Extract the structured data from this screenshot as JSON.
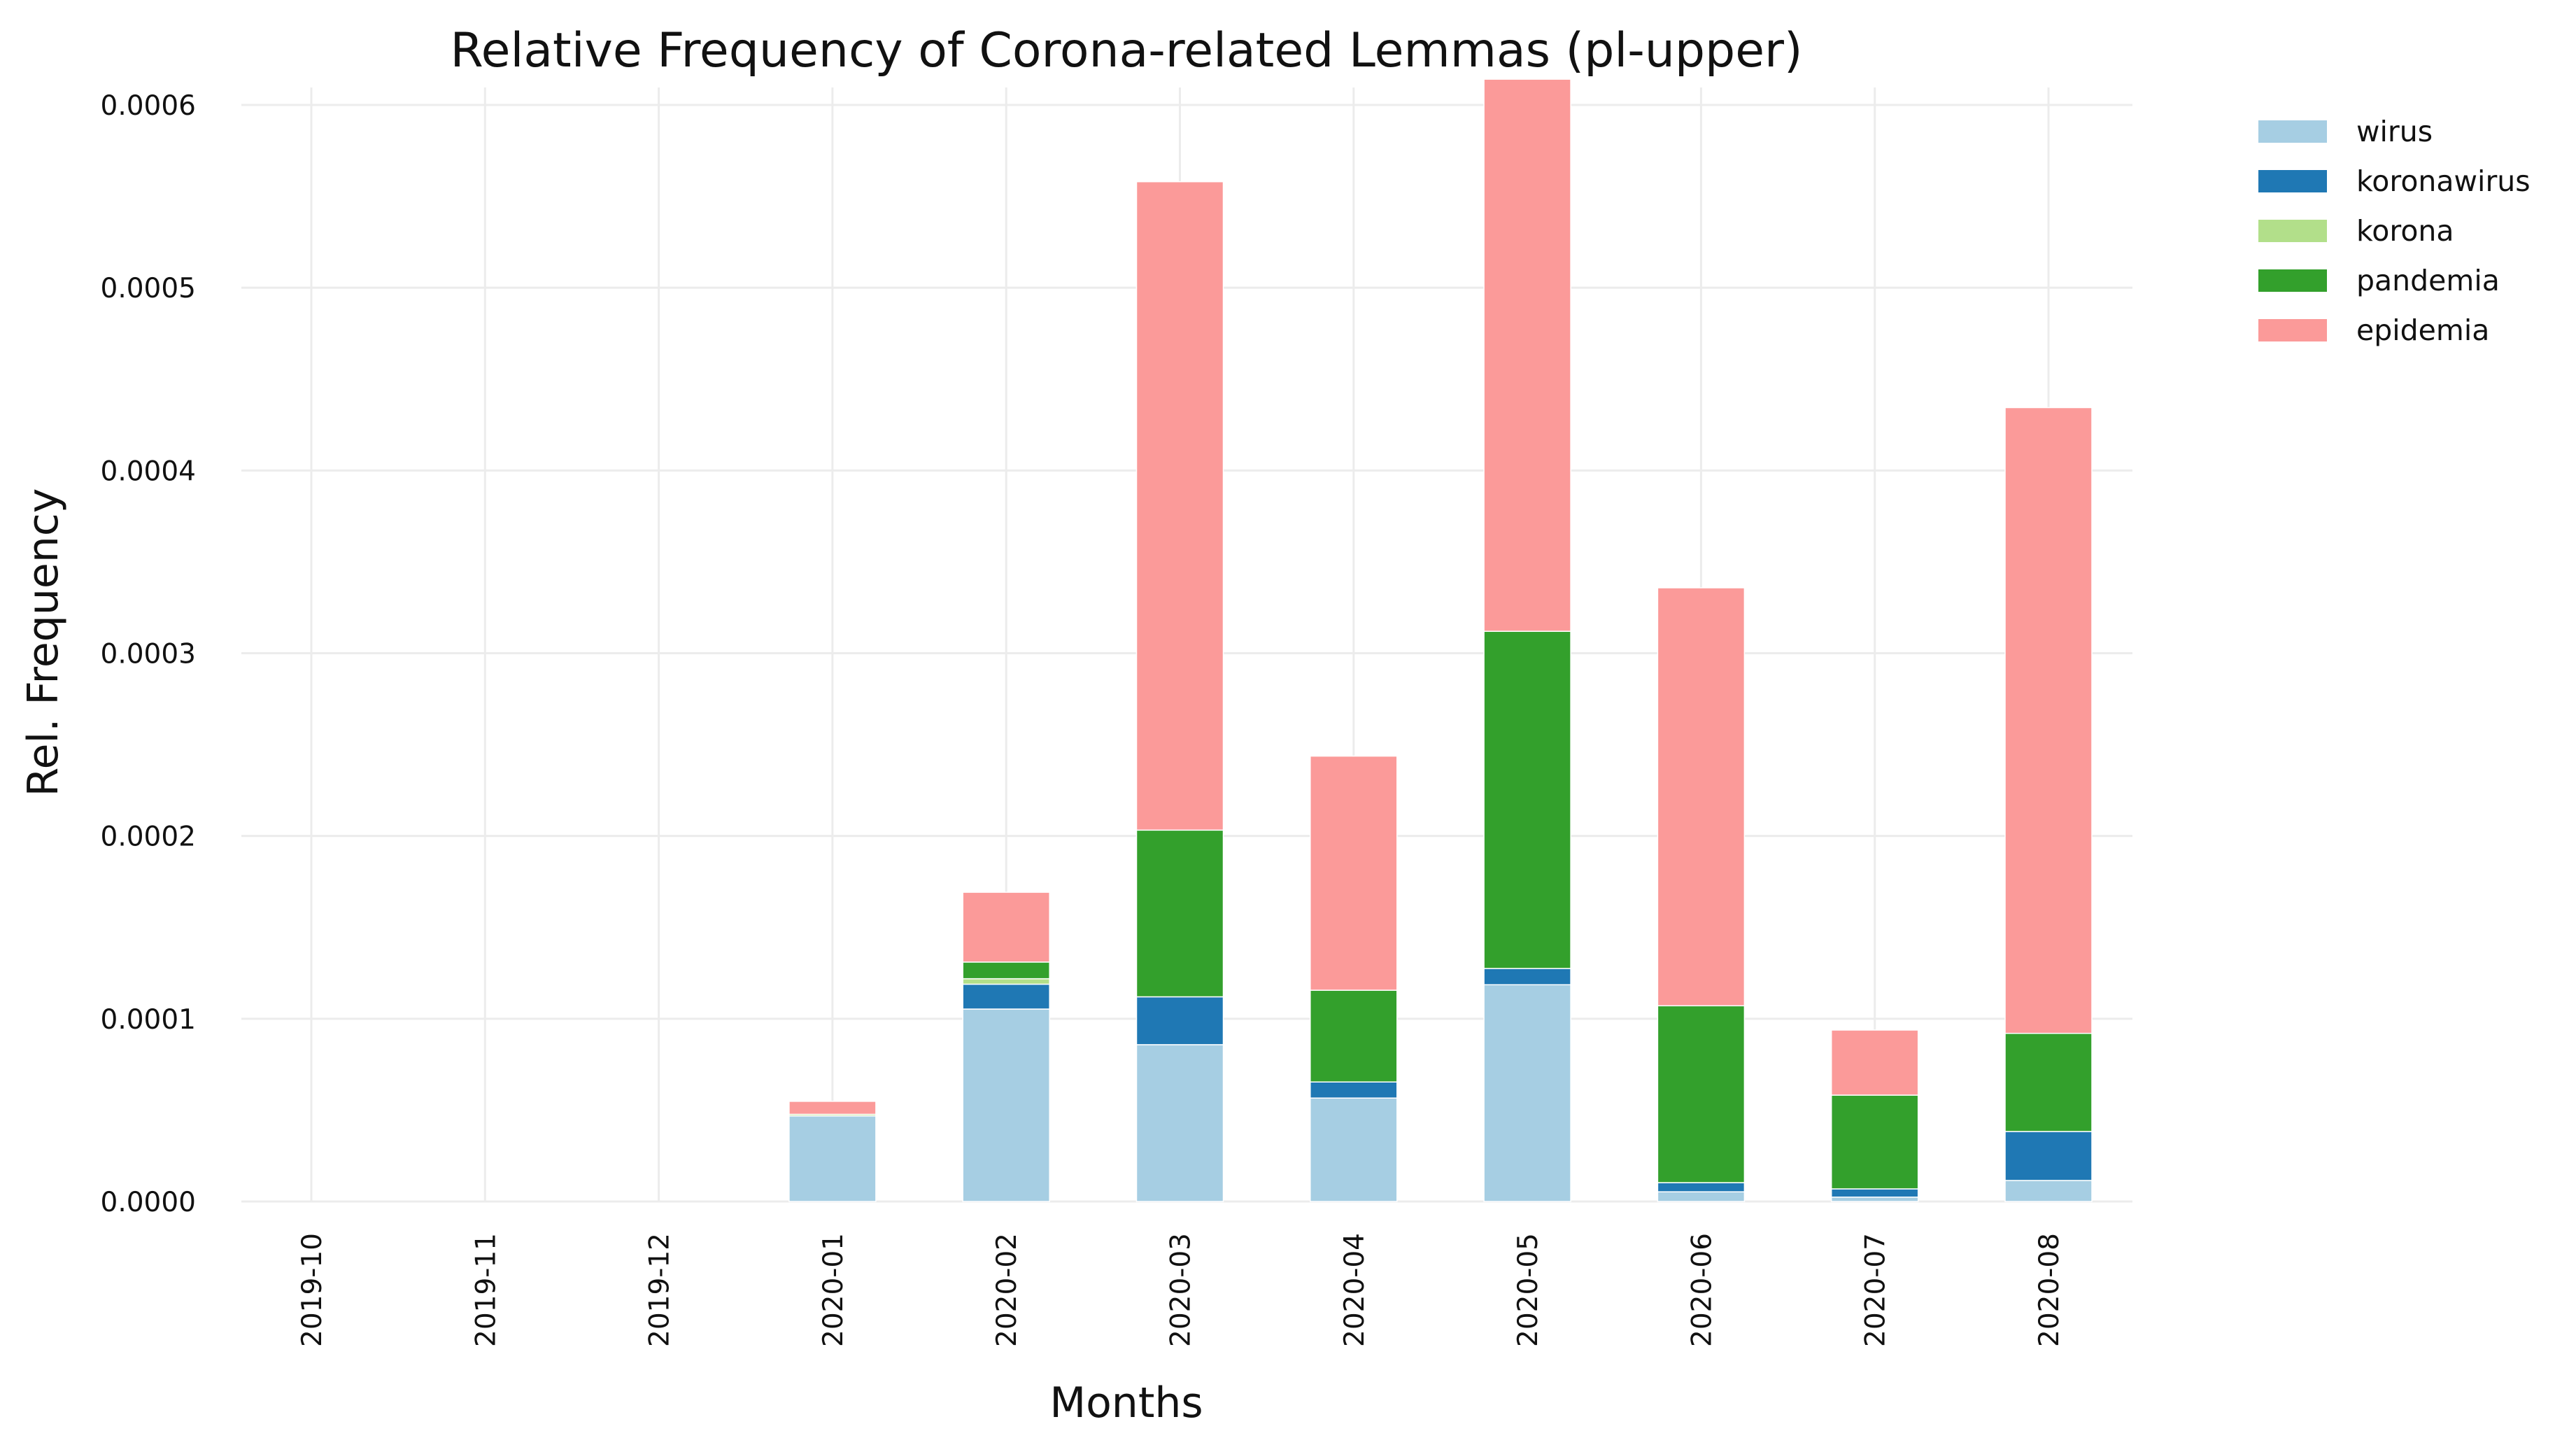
{
  "chart_data": {
    "type": "bar",
    "stacked": true,
    "title": "Relative Frequency of Corona-related Lemmas (pl-upper)",
    "xlabel": "Months",
    "ylabel": "Rel. Frequency",
    "ylim": [
      0,
      0.0006
    ],
    "yticks": [
      "0.0000",
      "0.0001",
      "0.0002",
      "0.0003",
      "0.0004",
      "0.0005",
      "0.0006"
    ],
    "grid": true,
    "legend_position": "top-right",
    "categories": [
      "2019-10",
      "2019-11",
      "2019-12",
      "2020-01",
      "2020-02",
      "2020-03",
      "2020-04",
      "2020-05",
      "2020-06",
      "2020-07",
      "2020-08"
    ],
    "series": [
      {
        "name": "wirus",
        "color": "#a6cee3",
        "values": [
          0,
          0,
          0,
          4.68e-05,
          0.0001053,
          8.58e-05,
          5.66e-05,
          0.0001186,
          5.3e-06,
          2.4e-06,
          1.15e-05
        ]
      },
      {
        "name": "koronawirus",
        "color": "#1f78b4",
        "values": [
          0,
          0,
          0,
          0,
          1.36e-05,
          2.62e-05,
          8.8e-06,
          8.9e-06,
          5e-06,
          4.5e-06,
          2.68e-05
        ]
      },
      {
        "name": "korona",
        "color": "#b2df8a",
        "values": [
          0,
          0,
          0,
          9e-07,
          3e-06,
          0,
          0,
          0,
          0,
          0,
          0
        ]
      },
      {
        "name": "pandemia",
        "color": "#33a02c",
        "values": [
          0,
          0,
          0,
          0,
          9.1e-06,
          9.12e-05,
          5.02e-05,
          0.0001845,
          9.68e-05,
          5.13e-05,
          5.37e-05
        ]
      },
      {
        "name": "epidemia",
        "color": "#fb9a99",
        "values": [
          0,
          0,
          0,
          7.1e-06,
          3.82e-05,
          0.0003548,
          0.0001281,
          0.0003021,
          0.0002287,
          3.56e-05,
          0.0003424
        ]
      }
    ]
  }
}
